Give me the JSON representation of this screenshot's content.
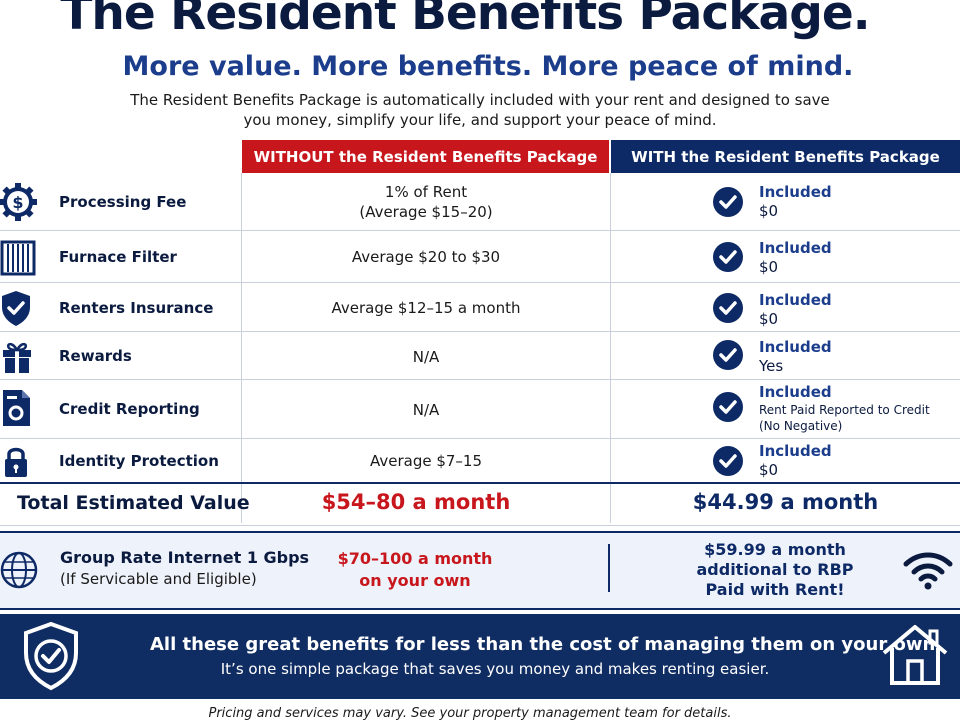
{
  "title": "The Resident Benefits Package.",
  "subtitle": "More value. More benefits. More peace of mind.",
  "intro": "The Resident Benefits Package is automatically included with your rent and designed to save you money, simplify your life, and support your peace of mind.",
  "table": {
    "header_without": "WITHOUT the Resident Benefits Package",
    "header_with": "WITH the Resident Benefits Package",
    "rows": [
      {
        "icon": "dollar-gear-icon",
        "label": "Processing Fee",
        "without": "1% of Rent (Average $15–20)",
        "with_status": "Included",
        "with_value": "$0"
      },
      {
        "icon": "filter-icon",
        "label": "Furnace Filter",
        "without": "Average $20 to $30",
        "with_status": "Included",
        "with_value": "$0"
      },
      {
        "icon": "shield-check-icon",
        "label": "Renters Insurance",
        "without": "Average $12–15 a month",
        "with_status": "Included",
        "with_value": "$0"
      },
      {
        "icon": "gift-icon",
        "label": "Rewards",
        "without": "N/A",
        "with_status": "Included",
        "with_value": "Yes"
      },
      {
        "icon": "credit-report-icon",
        "label": "Credit Reporting",
        "without": "N/A",
        "with_status": "Included",
        "with_value": "Rent Paid Reported to Credit (No Negative)"
      },
      {
        "icon": "lock-icon",
        "label": "Identity Protection",
        "without": "Average $7–15",
        "with_status": "Included",
        "with_value": "$0"
      }
    ],
    "total_label": "Total Estimated Value",
    "total_without": "$54–80 a month",
    "total_with_amount": "$44.99",
    "total_with_suffix": "a month"
  },
  "internet": {
    "title": "Group Rate Internet 1 Gbps",
    "subtitle": "(If Servicable and Eligible)",
    "without_line1": "$70–100 a month",
    "without_line2": "on your own",
    "with_line1": "$59.99 a month",
    "with_line2": "additional to RBP",
    "with_line3": "Paid with Rent!",
    "icon": "wifi-icon"
  },
  "banner": {
    "title": "All these great benefits for less than the cost of managing them on your own.",
    "subtitle": "It’s one simple package that saves you money and makes renting easier.",
    "left_icon": "shield-check-icon",
    "right_icon": "house-icon"
  },
  "disclaimer": "Pricing and services may vary. See your property management team for details.",
  "colors": {
    "navy": "#0e2a66",
    "red": "#c8161d",
    "light_bg": "#eef2fa"
  }
}
